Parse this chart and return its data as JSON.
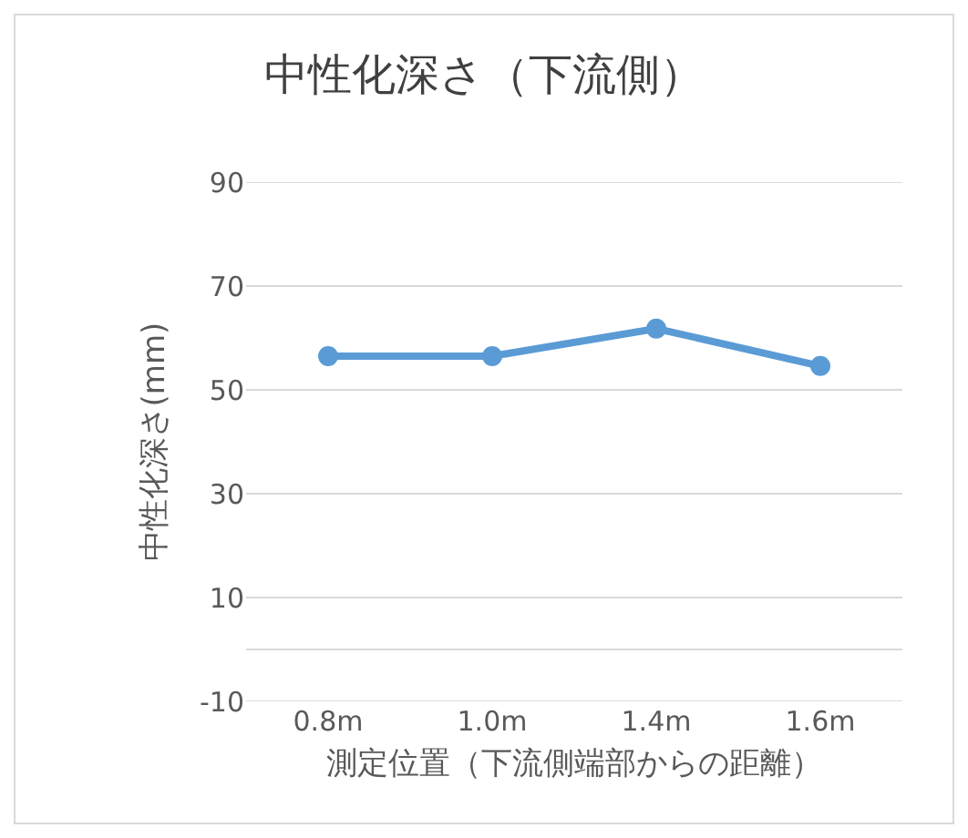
{
  "chart_data": {
    "type": "line",
    "title": "中性化深さ（下流側）",
    "xlabel": "測定位置（下流側端部からの距離）",
    "ylabel": "中性化深さ(mm)",
    "categories": [
      "0.8m",
      "1.0m",
      "1.4m",
      "1.6m"
    ],
    "series": [
      {
        "color": "#5b9bd5",
        "values": [
          56.5,
          56.5,
          61.8,
          54.6
        ]
      }
    ],
    "ylim": [
      -10,
      90
    ],
    "yticks": [
      -10,
      {
        "value": 0,
        "label": null
      },
      10,
      30,
      50,
      70,
      90
    ],
    "grid": "y",
    "marker": "circle",
    "line_style": "solid"
  }
}
